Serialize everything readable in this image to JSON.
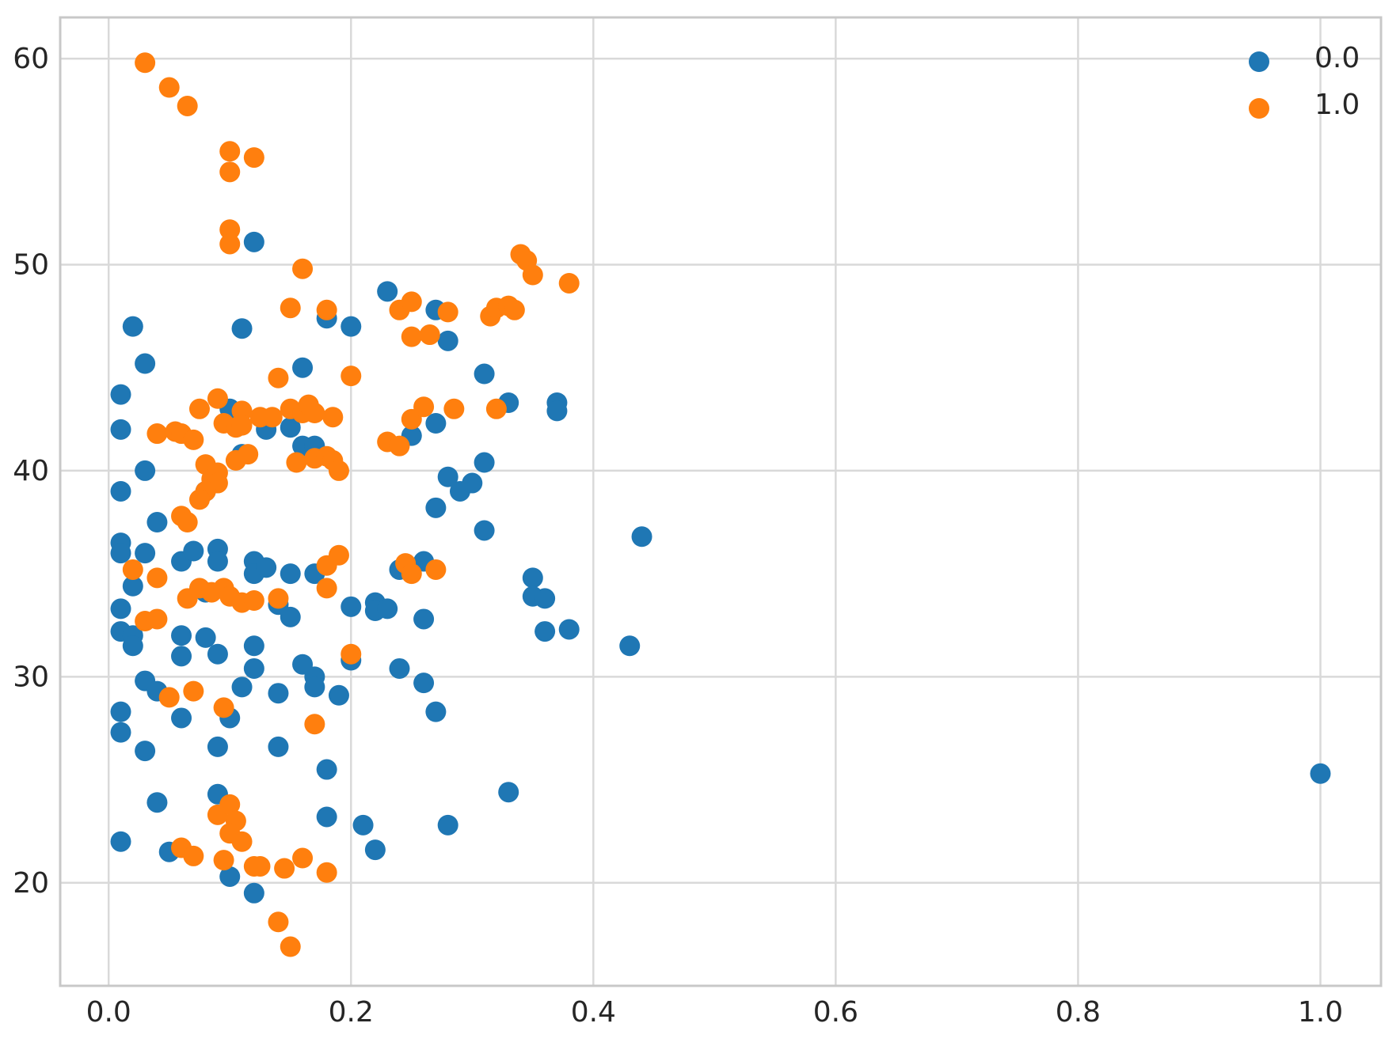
{
  "chart_data": {
    "type": "scatter",
    "title": "",
    "xlabel": "",
    "ylabel": "",
    "xlim": [
      -0.04,
      1.05
    ],
    "ylim": [
      15,
      62
    ],
    "x_ticks": [
      0.0,
      0.2,
      0.4,
      0.6,
      0.8,
      1.0
    ],
    "x_tick_labels": [
      "0.0",
      "0.2",
      "0.4",
      "0.6",
      "0.8",
      "1.0"
    ],
    "y_ticks": [
      20,
      30,
      40,
      50,
      60
    ],
    "y_tick_labels": [
      "20",
      "30",
      "40",
      "50",
      "60"
    ],
    "grid": true,
    "legend_position": "top-right",
    "series": [
      {
        "name": "0.0",
        "color": "#1f77b4",
        "points": [
          [
            0.01,
            43.7
          ],
          [
            0.01,
            42.0
          ],
          [
            0.01,
            39.0
          ],
          [
            0.01,
            36.5
          ],
          [
            0.01,
            36.0
          ],
          [
            0.01,
            33.3
          ],
          [
            0.01,
            32.2
          ],
          [
            0.01,
            28.3
          ],
          [
            0.01,
            27.3
          ],
          [
            0.01,
            22.0
          ],
          [
            0.02,
            47.0
          ],
          [
            0.02,
            34.4
          ],
          [
            0.02,
            32.0
          ],
          [
            0.02,
            31.5
          ],
          [
            0.03,
            45.2
          ],
          [
            0.03,
            40.0
          ],
          [
            0.03,
            36.0
          ],
          [
            0.03,
            29.8
          ],
          [
            0.03,
            26.4
          ],
          [
            0.04,
            37.5
          ],
          [
            0.04,
            29.3
          ],
          [
            0.04,
            23.9
          ],
          [
            0.05,
            21.5
          ],
          [
            0.06,
            35.6
          ],
          [
            0.06,
            32.0
          ],
          [
            0.06,
            31.0
          ],
          [
            0.06,
            28.0
          ],
          [
            0.07,
            36.1
          ],
          [
            0.08,
            39.0
          ],
          [
            0.08,
            34.1
          ],
          [
            0.08,
            31.9
          ],
          [
            0.09,
            36.2
          ],
          [
            0.09,
            35.6
          ],
          [
            0.09,
            31.1
          ],
          [
            0.09,
            26.6
          ],
          [
            0.09,
            24.3
          ],
          [
            0.1,
            43.0
          ],
          [
            0.1,
            28.0
          ],
          [
            0.1,
            20.3
          ],
          [
            0.11,
            46.9
          ],
          [
            0.11,
            40.8
          ],
          [
            0.11,
            29.5
          ],
          [
            0.12,
            51.1
          ],
          [
            0.12,
            35.6
          ],
          [
            0.12,
            35.0
          ],
          [
            0.12,
            31.5
          ],
          [
            0.12,
            30.4
          ],
          [
            0.12,
            19.5
          ],
          [
            0.13,
            42.0
          ],
          [
            0.13,
            35.3
          ],
          [
            0.14,
            33.5
          ],
          [
            0.14,
            29.2
          ],
          [
            0.14,
            26.6
          ],
          [
            0.15,
            42.1
          ],
          [
            0.15,
            35.0
          ],
          [
            0.15,
            32.9
          ],
          [
            0.16,
            45.0
          ],
          [
            0.16,
            41.2
          ],
          [
            0.16,
            30.6
          ],
          [
            0.17,
            41.2
          ],
          [
            0.17,
            35.0
          ],
          [
            0.17,
            30.0
          ],
          [
            0.17,
            29.5
          ],
          [
            0.18,
            47.4
          ],
          [
            0.18,
            25.5
          ],
          [
            0.18,
            23.2
          ],
          [
            0.19,
            29.1
          ],
          [
            0.2,
            47.0
          ],
          [
            0.2,
            33.4
          ],
          [
            0.2,
            30.8
          ],
          [
            0.21,
            22.8
          ],
          [
            0.22,
            33.6
          ],
          [
            0.22,
            33.2
          ],
          [
            0.22,
            21.6
          ],
          [
            0.23,
            48.7
          ],
          [
            0.23,
            33.3
          ],
          [
            0.24,
            35.2
          ],
          [
            0.24,
            30.4
          ],
          [
            0.25,
            41.7
          ],
          [
            0.26,
            35.6
          ],
          [
            0.26,
            32.8
          ],
          [
            0.26,
            29.7
          ],
          [
            0.27,
            47.8
          ],
          [
            0.27,
            42.3
          ],
          [
            0.27,
            38.2
          ],
          [
            0.27,
            28.3
          ],
          [
            0.28,
            46.3
          ],
          [
            0.28,
            39.7
          ],
          [
            0.28,
            22.8
          ],
          [
            0.29,
            39.0
          ],
          [
            0.3,
            39.4
          ],
          [
            0.31,
            44.7
          ],
          [
            0.31,
            40.4
          ],
          [
            0.31,
            37.1
          ],
          [
            0.33,
            43.3
          ],
          [
            0.33,
            24.4
          ],
          [
            0.35,
            34.8
          ],
          [
            0.35,
            33.9
          ],
          [
            0.36,
            33.8
          ],
          [
            0.36,
            32.2
          ],
          [
            0.37,
            43.3
          ],
          [
            0.37,
            42.9
          ],
          [
            0.38,
            32.3
          ],
          [
            0.43,
            31.5
          ],
          [
            0.44,
            36.8
          ],
          [
            1.0,
            25.3
          ]
        ]
      },
      {
        "name": "1.0",
        "color": "#ff7f0e",
        "points": [
          [
            0.03,
            59.8
          ],
          [
            0.05,
            58.6
          ],
          [
            0.065,
            57.7
          ],
          [
            0.1,
            55.5
          ],
          [
            0.1,
            54.5
          ],
          [
            0.12,
            55.2
          ],
          [
            0.1,
            51.7
          ],
          [
            0.1,
            51.0
          ],
          [
            0.16,
            49.8
          ],
          [
            0.15,
            47.9
          ],
          [
            0.18,
            47.8
          ],
          [
            0.14,
            44.5
          ],
          [
            0.2,
            44.6
          ],
          [
            0.04,
            41.8
          ],
          [
            0.055,
            41.9
          ],
          [
            0.06,
            41.8
          ],
          [
            0.07,
            41.5
          ],
          [
            0.075,
            43.0
          ],
          [
            0.09,
            43.5
          ],
          [
            0.095,
            42.3
          ],
          [
            0.105,
            42.1
          ],
          [
            0.11,
            42.9
          ],
          [
            0.11,
            42.2
          ],
          [
            0.125,
            42.6
          ],
          [
            0.135,
            42.6
          ],
          [
            0.15,
            43.0
          ],
          [
            0.16,
            42.8
          ],
          [
            0.165,
            43.2
          ],
          [
            0.17,
            42.8
          ],
          [
            0.185,
            42.6
          ],
          [
            0.08,
            40.3
          ],
          [
            0.085,
            39.6
          ],
          [
            0.09,
            39.9
          ],
          [
            0.09,
            39.4
          ],
          [
            0.08,
            39.0
          ],
          [
            0.075,
            38.6
          ],
          [
            0.06,
            37.8
          ],
          [
            0.065,
            37.5
          ],
          [
            0.105,
            40.5
          ],
          [
            0.115,
            40.8
          ],
          [
            0.155,
            40.4
          ],
          [
            0.17,
            40.6
          ],
          [
            0.18,
            40.7
          ],
          [
            0.185,
            40.5
          ],
          [
            0.19,
            40.0
          ],
          [
            0.02,
            35.2
          ],
          [
            0.04,
            34.8
          ],
          [
            0.03,
            32.7
          ],
          [
            0.04,
            32.8
          ],
          [
            0.065,
            33.8
          ],
          [
            0.075,
            34.3
          ],
          [
            0.085,
            34.1
          ],
          [
            0.095,
            34.3
          ],
          [
            0.1,
            33.9
          ],
          [
            0.11,
            33.6
          ],
          [
            0.12,
            33.7
          ],
          [
            0.14,
            33.8
          ],
          [
            0.18,
            34.3
          ],
          [
            0.18,
            35.4
          ],
          [
            0.19,
            35.9
          ],
          [
            0.2,
            31.1
          ],
          [
            0.05,
            29.0
          ],
          [
            0.07,
            29.3
          ],
          [
            0.095,
            28.5
          ],
          [
            0.17,
            27.7
          ],
          [
            0.09,
            23.3
          ],
          [
            0.1,
            23.8
          ],
          [
            0.105,
            23.0
          ],
          [
            0.1,
            22.4
          ],
          [
            0.11,
            22.0
          ],
          [
            0.06,
            21.7
          ],
          [
            0.07,
            21.3
          ],
          [
            0.095,
            21.1
          ],
          [
            0.12,
            20.8
          ],
          [
            0.125,
            20.8
          ],
          [
            0.145,
            20.7
          ],
          [
            0.16,
            21.2
          ],
          [
            0.18,
            20.5
          ],
          [
            0.14,
            18.1
          ],
          [
            0.15,
            16.9
          ],
          [
            0.23,
            41.4
          ],
          [
            0.24,
            41.2
          ],
          [
            0.25,
            42.5
          ],
          [
            0.26,
            43.1
          ],
          [
            0.285,
            43.0
          ],
          [
            0.24,
            47.8
          ],
          [
            0.25,
            48.2
          ],
          [
            0.25,
            46.5
          ],
          [
            0.265,
            46.6
          ],
          [
            0.28,
            47.7
          ],
          [
            0.245,
            35.5
          ],
          [
            0.25,
            35.0
          ],
          [
            0.27,
            35.2
          ],
          [
            0.315,
            47.5
          ],
          [
            0.32,
            47.9
          ],
          [
            0.33,
            48.0
          ],
          [
            0.335,
            47.8
          ],
          [
            0.32,
            43.0
          ],
          [
            0.34,
            50.5
          ],
          [
            0.345,
            50.2
          ],
          [
            0.35,
            49.5
          ],
          [
            0.38,
            49.1
          ]
        ]
      }
    ]
  }
}
